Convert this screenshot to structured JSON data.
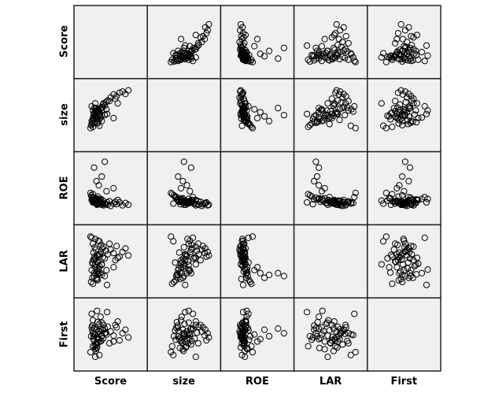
{
  "chart_data": {
    "type": "scatter-matrix",
    "title": "",
    "variables": [
      "Score",
      "size",
      "ROE",
      "LAR",
      "First"
    ],
    "note": "values normalized to each variable's plotted range (0-1); no axis ticks shown",
    "records": [
      [
        0.22,
        0.45,
        0.28,
        0.52,
        0.4
      ],
      [
        0.3,
        0.55,
        0.25,
        0.6,
        0.55
      ],
      [
        0.18,
        0.4,
        0.3,
        0.35,
        0.62
      ],
      [
        0.25,
        0.62,
        0.27,
        0.7,
        0.33
      ],
      [
        0.35,
        0.5,
        0.22,
        0.45,
        0.48
      ],
      [
        0.28,
        0.38,
        0.31,
        0.28,
        0.71
      ],
      [
        0.2,
        0.58,
        0.26,
        0.8,
        0.52
      ],
      [
        0.4,
        0.66,
        0.24,
        0.55,
        0.6
      ],
      [
        0.24,
        0.48,
        0.33,
        0.4,
        0.25
      ],
      [
        0.32,
        0.52,
        0.29,
        0.62,
        0.38
      ],
      [
        0.27,
        0.44,
        0.23,
        0.2,
        0.45
      ],
      [
        0.19,
        0.35,
        0.35,
        0.48,
        0.57
      ],
      [
        0.38,
        0.7,
        0.21,
        0.75,
        0.66
      ],
      [
        0.23,
        0.54,
        0.28,
        0.58,
        0.3
      ],
      [
        0.29,
        0.6,
        0.26,
        0.85,
        0.5
      ],
      [
        0.33,
        0.46,
        0.32,
        0.3,
        0.8
      ],
      [
        0.21,
        0.42,
        0.27,
        0.65,
        0.42
      ],
      [
        0.26,
        0.57,
        0.24,
        0.5,
        0.35
      ],
      [
        0.36,
        0.64,
        0.3,
        0.72,
        0.58
      ],
      [
        0.17,
        0.33,
        0.38,
        0.15,
        0.47
      ],
      [
        0.31,
        0.51,
        0.25,
        0.42,
        0.68
      ],
      [
        0.25,
        0.49,
        0.29,
        0.55,
        0.22
      ],
      [
        0.42,
        0.72,
        0.23,
        0.68,
        0.53
      ],
      [
        0.28,
        0.59,
        0.27,
        0.33,
        0.44
      ],
      [
        0.22,
        0.37,
        0.34,
        0.25,
        0.61
      ],
      [
        0.34,
        0.63,
        0.26,
        0.78,
        0.39
      ],
      [
        0.2,
        0.45,
        0.3,
        0.46,
        0.74
      ],
      [
        0.27,
        0.53,
        0.22,
        0.61,
        0.28
      ],
      [
        0.3,
        0.41,
        0.28,
        0.38,
        0.56
      ],
      [
        0.24,
        0.56,
        0.25,
        0.88,
        0.49
      ],
      [
        0.37,
        0.68,
        0.24,
        0.57,
        0.43
      ],
      [
        0.19,
        0.39,
        0.31,
        0.22,
        0.65
      ],
      [
        0.29,
        0.47,
        0.27,
        0.49,
        0.36
      ],
      [
        0.33,
        0.61,
        0.29,
        0.66,
        0.59
      ],
      [
        0.23,
        0.5,
        0.26,
        0.74,
        0.51
      ],
      [
        0.26,
        0.43,
        0.33,
        0.31,
        0.27
      ],
      [
        0.45,
        0.75,
        0.22,
        0.62,
        0.63
      ],
      [
        0.21,
        0.52,
        0.28,
        0.53,
        0.46
      ],
      [
        0.35,
        0.58,
        0.25,
        0.44,
        0.7
      ],
      [
        0.28,
        0.36,
        0.36,
        0.18,
        0.41
      ],
      [
        0.5,
        0.8,
        0.2,
        0.7,
        0.55
      ],
      [
        0.55,
        0.85,
        0.24,
        0.64,
        0.48
      ],
      [
        0.6,
        0.82,
        0.23,
        0.76,
        0.62
      ],
      [
        0.65,
        0.88,
        0.26,
        0.58,
        0.4
      ],
      [
        0.7,
        0.9,
        0.21,
        0.66,
        0.52
      ],
      [
        0.75,
        0.86,
        0.25,
        0.72,
        0.58
      ],
      [
        0.8,
        0.92,
        0.22,
        0.6,
        0.45
      ],
      [
        0.58,
        0.78,
        0.27,
        0.52,
        0.66
      ],
      [
        0.48,
        0.74,
        0.28,
        0.8,
        0.35
      ],
      [
        0.62,
        0.7,
        0.3,
        0.56,
        0.72
      ],
      [
        0.43,
        0.6,
        0.45,
        0.35,
        0.5
      ],
      [
        0.3,
        0.55,
        0.55,
        0.3,
        0.42
      ],
      [
        0.26,
        0.48,
        0.62,
        0.22,
        0.58
      ],
      [
        0.35,
        0.4,
        0.7,
        0.27,
        0.47
      ],
      [
        0.22,
        0.62,
        0.85,
        0.3,
        0.6
      ],
      [
        0.4,
        0.5,
        0.95,
        0.25,
        0.52
      ],
      [
        0.55,
        0.45,
        0.5,
        0.4,
        0.38
      ],
      [
        0.2,
        0.3,
        0.4,
        0.12,
        0.3
      ],
      [
        0.16,
        0.28,
        0.42,
        0.92,
        0.2
      ],
      [
        0.18,
        0.65,
        0.35,
        0.9,
        0.85
      ],
      [
        0.44,
        0.52,
        0.26,
        0.1,
        0.88
      ],
      [
        0.24,
        0.7,
        0.29,
        0.45,
        0.12
      ],
      [
        0.31,
        0.32,
        0.24,
        0.84,
        0.15
      ],
      [
        0.27,
        0.58,
        0.32,
        0.36,
        0.9
      ]
    ]
  }
}
